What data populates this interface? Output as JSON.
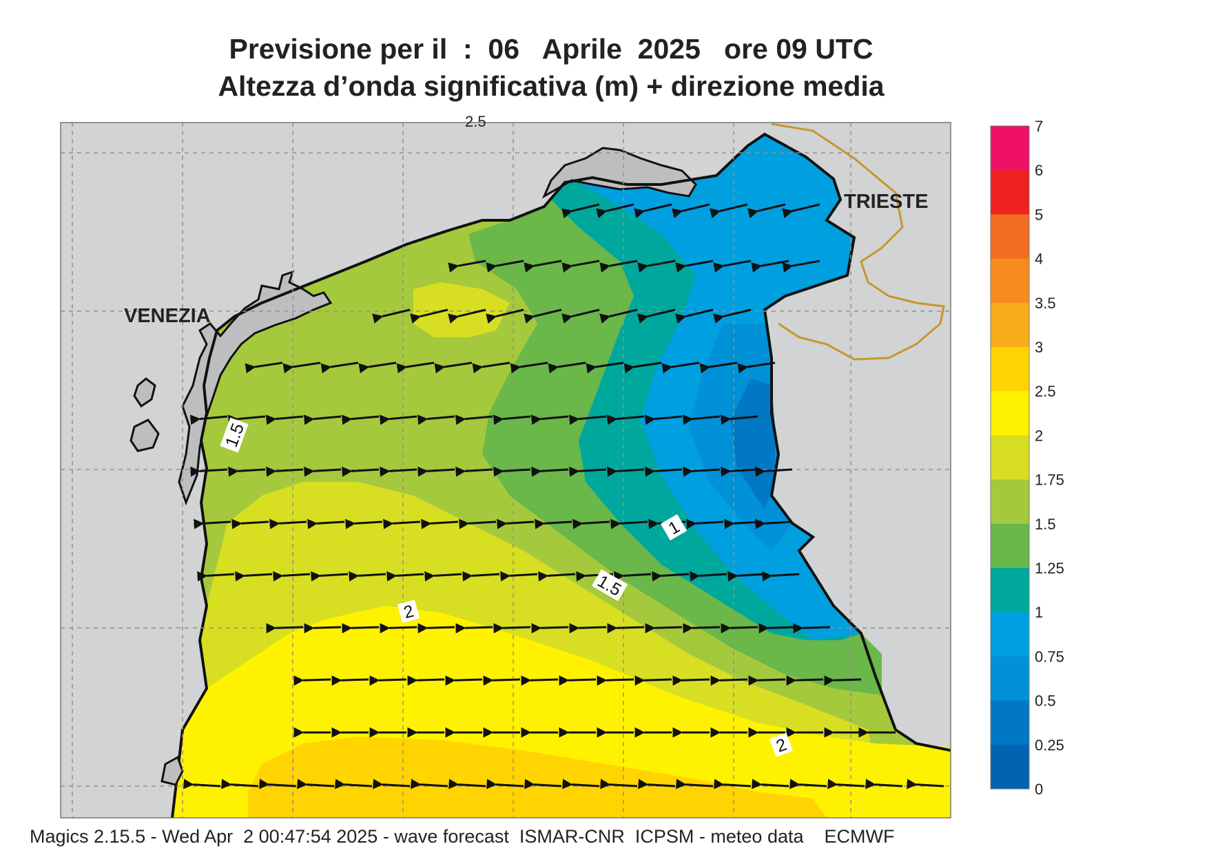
{
  "title": {
    "line1": "Previsione per il  :  06   Aprile  2025   ore 09 UTC",
    "line2": "Altezza d’onda significativa (m) + direzione media"
  },
  "map": {
    "cities": [
      {
        "name": "VENEZIA"
      },
      {
        "name": "TRIESTE"
      }
    ],
    "partial_top_label": "2.5",
    "contour_labels": [
      "1.5",
      "1",
      "1.5",
      "2",
      "2"
    ]
  },
  "legend": {
    "levels": [
      {
        "label": "7",
        "color": ""
      },
      {
        "label": "6",
        "color": "#ee1166"
      },
      {
        "label": "5",
        "color": "#ee2222"
      },
      {
        "label": "4",
        "color": "#f26d22"
      },
      {
        "label": "3.5",
        "color": "#f68c1e"
      },
      {
        "label": "3",
        "color": "#f9ac1b"
      },
      {
        "label": "2.5",
        "color": "#ffd400"
      },
      {
        "label": "2",
        "color": "#fff200"
      },
      {
        "label": "1.75",
        "color": "#d8df22"
      },
      {
        "label": "1.5",
        "color": "#a5c93c"
      },
      {
        "label": "1.25",
        "color": "#6ab74a"
      },
      {
        "label": "1",
        "color": "#00a79d"
      },
      {
        "label": "0.75",
        "color": "#009fe0"
      },
      {
        "label": "0.5",
        "color": "#0091d8"
      },
      {
        "label": "0.25",
        "color": "#0078c3"
      },
      {
        "label": "0",
        "color": "#0064b0"
      }
    ]
  },
  "footer": "Magics 2.15.5 - Wed Apr  2 00:47:54 2025 - wave forecast  ISMAR-CNR  ICPSM - meteo data    ECMWF"
}
